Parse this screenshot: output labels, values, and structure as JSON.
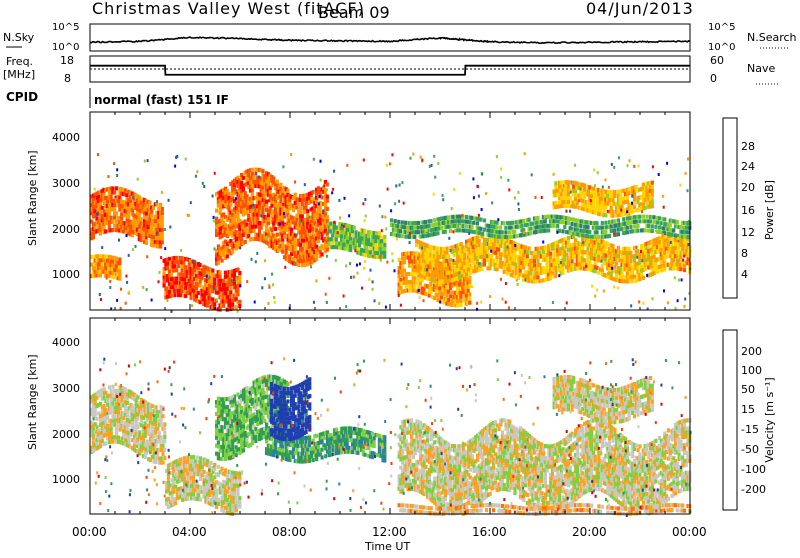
{
  "header": {
    "title": "Christmas Valley West (fitACF)",
    "beam": "Beam 09",
    "date": "04/Jun/2013"
  },
  "noise_panel": {
    "left_label": "N.Sky",
    "left_ticks": [
      "10^5",
      "10^0"
    ],
    "right_label": "N.Search",
    "right_ticks": [
      "10^5",
      "10^0"
    ]
  },
  "freq_panel": {
    "left_label_line1": "Freq.",
    "left_label_line2": "[MHz]",
    "left_ticks": [
      "18",
      "8"
    ],
    "right_label": "Nave",
    "right_ticks": [
      "60",
      "0"
    ]
  },
  "cpid": {
    "label": "CPID",
    "value": "normal (fast) 151 IF"
  },
  "x_axis": {
    "ticks": [
      "00:00",
      "04:00",
      "08:00",
      "12:00",
      "16:00",
      "20:00",
      "00:00"
    ],
    "label": "Time UT"
  },
  "power_panel": {
    "ylabel": "Slant Range [km]",
    "yticks": [
      "4000",
      "3000",
      "2000",
      "1000"
    ],
    "colorbar_label": "Power [dB]",
    "colorbar_ticks": [
      "28",
      "24",
      "20",
      "16",
      "12",
      "8",
      "4"
    ],
    "colors": [
      "#0000ff",
      "#1c5fb0",
      "#2e7f6e",
      "#3aa55a",
      "#8fd028",
      "#ffd400",
      "#ff9a00",
      "#ff5000",
      "#ff0000"
    ]
  },
  "velocity_panel": {
    "ylabel": "Slant Range [km]",
    "yticks": [
      "4000",
      "3000",
      "2000",
      "1000"
    ],
    "colorbar_label": "Velocity [m s⁻¹]",
    "colorbar_ticks": [
      "200",
      "100",
      "50",
      "15",
      "-15",
      "-50",
      "-100",
      "-200"
    ],
    "colors": [
      "#1f3fb0",
      "#2f7fa0",
      "#2f9f4f",
      "#7fd040",
      "#c8c8c0",
      "#ffa020",
      "#ff7010",
      "#ff3a0a",
      "#e00000"
    ]
  },
  "chart_data": [
    {
      "type": "line",
      "title": "N.Sky",
      "x": [
        "00:00",
        "02:00",
        "04:00",
        "06:00",
        "08:00",
        "10:00",
        "12:00",
        "14:00",
        "15:00",
        "16:00",
        "18:00",
        "20:00",
        "22:00",
        "24:00"
      ],
      "ylim_log10": [
        0,
        5
      ],
      "series": [
        {
          "name": "N.Sky",
          "values_log10": [
            1.4,
            1.6,
            2.4,
            2.2,
            1.8,
            1.7,
            1.6,
            2.3,
            1.9,
            1.5,
            1.3,
            1.4,
            1.5,
            1.6
          ]
        }
      ]
    },
    {
      "type": "line",
      "title": "Freq.",
      "x": [
        "00:00",
        "03:00",
        "03:01",
        "15:00",
        "15:01",
        "24:00"
      ],
      "ylim": [
        8,
        18
      ],
      "series": [
        {
          "name": "Freq.",
          "values": [
            14.5,
            14.5,
            10.4,
            10.4,
            14.5,
            14.5
          ]
        },
        {
          "name": "Nave",
          "values": [
            30,
            30,
            30,
            30,
            30,
            30
          ]
        }
      ]
    },
    {
      "type": "heatmap",
      "title": "Power [dB]",
      "xlim_hours": [
        0,
        24
      ],
      "ylim_km": [
        180,
        4500
      ],
      "clim": [
        0,
        30
      ],
      "bands": [
        {
          "t0": 0.0,
          "t1": 2.9,
          "r0": 1700,
          "r1": 2700,
          "value": 24
        },
        {
          "t0": 0.0,
          "t1": 1.2,
          "r0": 800,
          "r1": 1300,
          "value": 22
        },
        {
          "t0": 2.9,
          "t1": 6.0,
          "r0": 300,
          "r1": 1200,
          "value": 26
        },
        {
          "t0": 5.0,
          "t1": 9.5,
          "r0": 1400,
          "r1": 3000,
          "value": 24
        },
        {
          "t0": 9.5,
          "t1": 11.8,
          "r0": 1400,
          "r1": 2000,
          "value": 14
        },
        {
          "t0": 12.3,
          "t1": 15.2,
          "r0": 400,
          "r1": 1300,
          "value": 22
        },
        {
          "t0": 13.0,
          "t1": 24.0,
          "r0": 900,
          "r1": 1700,
          "value": 20
        },
        {
          "t0": 18.5,
          "t1": 22.5,
          "r0": 2300,
          "r1": 2900,
          "value": 20
        },
        {
          "t0": 12.0,
          "t1": 24.0,
          "r0": 1800,
          "r1": 2200,
          "value": 12
        }
      ]
    },
    {
      "type": "heatmap",
      "title": "Velocity [m s-1]",
      "xlim_hours": [
        0,
        24
      ],
      "ylim_km": [
        180,
        4500
      ],
      "clim": [
        -200,
        200
      ],
      "bands": [
        {
          "t0": 0.0,
          "t1": 3.0,
          "r0": 1500,
          "r1": 2800,
          "value": 0
        },
        {
          "t0": 3.0,
          "t1": 6.0,
          "r0": 300,
          "r1": 1300,
          "value": 0
        },
        {
          "t0": 5.0,
          "t1": 8.0,
          "r0": 1600,
          "r1": 3000,
          "value": -60
        },
        {
          "t0": 7.0,
          "t1": 11.8,
          "r0": 1400,
          "r1": 2000,
          "value": -90
        },
        {
          "t0": 7.2,
          "t1": 8.8,
          "r0": 2000,
          "r1": 3200,
          "value": -200
        },
        {
          "t0": 12.3,
          "t1": 24.0,
          "r0": 400,
          "r1": 2000,
          "value": 0
        },
        {
          "t0": 12.3,
          "t1": 24.0,
          "r0": 180,
          "r1": 400,
          "value": 30
        },
        {
          "t0": 18.5,
          "t1": 22.5,
          "r0": 2300,
          "r1": 3100,
          "value": 0
        }
      ]
    }
  ]
}
